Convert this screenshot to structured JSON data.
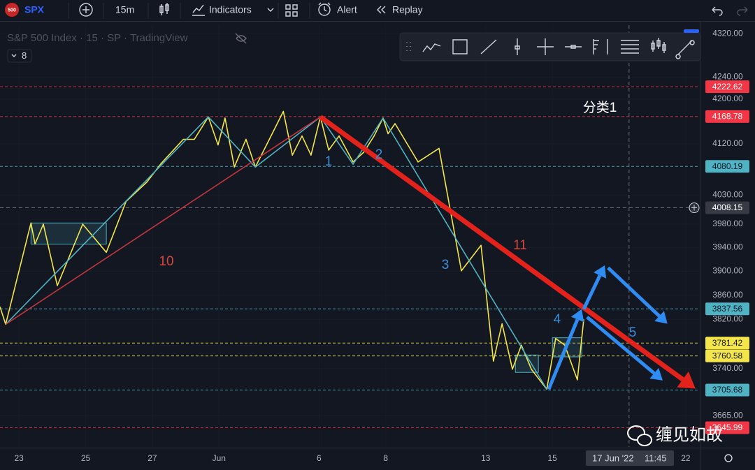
{
  "toolbar": {
    "logo": "500",
    "symbol": "SPX",
    "interval": "15m",
    "indicators": "Indicators",
    "alert": "Alert",
    "replay": "Replay"
  },
  "legend": {
    "title": "S&P 500 Index · 15 · SP · TradingView",
    "count": "8"
  },
  "watermark": "缠见如故",
  "chart_data": {
    "type": "line",
    "log_scale": true,
    "grid": true,
    "xlim": [
      -0.57,
      20.4
    ],
    "ylim": [
      3616,
      4336
    ],
    "xticks": [
      {
        "value": 0,
        "label": "23"
      },
      {
        "value": 2,
        "label": "25"
      },
      {
        "value": 4,
        "label": "27"
      },
      {
        "value": 6,
        "label": "Jun"
      },
      {
        "value": 9,
        "label": "6"
      },
      {
        "value": 11,
        "label": "8"
      },
      {
        "value": 14,
        "label": "13"
      },
      {
        "value": 16,
        "label": "15"
      },
      {
        "value": 20,
        "label": "22"
      }
    ],
    "yticks": [
      {
        "value": 4320,
        "label": "4320.00"
      },
      {
        "value": 4240,
        "label": "4240.00"
      },
      {
        "value": 4200,
        "label": "4200.00"
      },
      {
        "value": 4120,
        "label": "4120.00"
      },
      {
        "value": 4030,
        "label": "4030.00"
      },
      {
        "value": 3980,
        "label": "3980.00"
      },
      {
        "value": 3940,
        "label": "3940.00"
      },
      {
        "value": 3900,
        "label": "3900.00"
      },
      {
        "value": 3860,
        "label": "3860.00"
      },
      {
        "value": 3820,
        "label": "3820.00"
      },
      {
        "value": 3740,
        "label": "3740.00"
      },
      {
        "value": 3665,
        "label": "3665.00"
      }
    ],
    "series": [
      {
        "color": "#f4e64a",
        "style": "thin",
        "x": [
          -0.57,
          -0.4,
          0.36,
          0.48,
          0.73,
          1.15,
          1.91,
          2.62,
          3.21,
          3.84,
          4.26,
          4.93,
          5.26,
          5.68,
          5.97,
          6.18,
          6.46,
          6.81,
          7.09,
          7.51,
          7.93,
          8.2,
          8.49,
          8.76,
          9.04,
          9.29,
          9.6,
          10.02,
          10.34,
          10.65,
          10.92,
          11.07,
          11.28,
          11.97,
          12.6,
          13.27,
          13.86,
          14.23,
          14.49,
          14.8,
          15.07,
          15.37,
          15.83,
          16.1,
          16.37,
          16.75,
          16.94
        ],
        "values": [
          3841,
          3812,
          3982,
          3946,
          3980,
          3876,
          3980,
          3932,
          4019,
          4053,
          4085,
          4128,
          4128,
          4168,
          4118,
          4166,
          4079,
          4128,
          4079,
          4128,
          4178,
          4100,
          4134,
          4100,
          4168,
          4109,
          4134,
          4088,
          4105,
          4134,
          4166,
          4138,
          4156,
          4088,
          4112,
          3901,
          3944,
          3752,
          3813,
          3739,
          3778,
          3739,
          3707,
          3789,
          3778,
          3722,
          3820
        ]
      },
      {
        "color": "#4fb3c4",
        "style": "thin",
        "x": [
          -0.4,
          5.68,
          7.09,
          9.04,
          10.02,
          10.92,
          15.83
        ],
        "values": [
          3812,
          4168,
          4079,
          4168,
          4084,
          4166,
          3707
        ]
      },
      {
        "color": "#c2363c",
        "style": "thin",
        "x": [
          -0.4,
          9.04
        ],
        "values": [
          3812,
          4168
        ]
      },
      {
        "color": "#e3231b",
        "style": "thick-arrow",
        "x": [
          9.04,
          20.29
        ],
        "values": [
          4168,
          3708
        ]
      },
      {
        "color": "#2f8cf3",
        "style": "arrow",
        "x": [
          15.89,
          16.88
        ],
        "values": [
          3707,
          3837
        ]
      },
      {
        "color": "#2f8cf3",
        "style": "arrow",
        "x": [
          16.94,
          17.57
        ],
        "values": [
          3837,
          3910
        ]
      },
      {
        "color": "#2f8cf3",
        "style": "arrow",
        "x": [
          17.67,
          19.45
        ],
        "values": [
          3906,
          3813
        ]
      },
      {
        "color": "#2f8cf3",
        "style": "arrow",
        "x": [
          17.04,
          19.31
        ],
        "values": [
          3824,
          3721
        ]
      }
    ],
    "boxes": [
      {
        "color": "#4fb3c4",
        "x": [
          0.36,
          2.62
        ],
        "y": [
          3946,
          3982
        ]
      },
      {
        "color": "#4fb3c4",
        "x": [
          14.89,
          15.58
        ],
        "y": [
          3734,
          3762
        ]
      },
      {
        "color": "#4fb3c4",
        "x": [
          16.0,
          16.88
        ],
        "y": [
          3759,
          3790
        ]
      }
    ],
    "price_lines": [
      {
        "value": 4222.62,
        "color": "#f23645"
      },
      {
        "value": 4168.78,
        "color": "#f23645"
      },
      {
        "value": 4080.19,
        "color": "#4fb3c4"
      },
      {
        "value": 3837.56,
        "color": "#4fb3c4"
      },
      {
        "value": 3781.42,
        "color": "#f4e64a"
      },
      {
        "value": 3760.58,
        "color": "#f4e64a"
      },
      {
        "value": 3705.68,
        "color": "#4fb3c4"
      },
      {
        "value": 3645.99,
        "color": "#f23645"
      }
    ],
    "annotations": [
      {
        "text": "10",
        "color": "#d9473f"
      },
      {
        "text": "1",
        "color": "#3a8fdd"
      },
      {
        "text": "2",
        "color": "#3a8fdd"
      },
      {
        "text": "3",
        "color": "#3a8fdd"
      },
      {
        "text": "11",
        "color": "#d9473f"
      },
      {
        "text": "4",
        "color": "#3a8fdd"
      },
      {
        "text": "5",
        "color": "#3a8fdd"
      },
      {
        "text": "分类1",
        "color": "#ffffff"
      }
    ],
    "crosshair": {
      "price": 4008.15,
      "date": "17 Jun '22",
      "time": "11:45"
    }
  }
}
